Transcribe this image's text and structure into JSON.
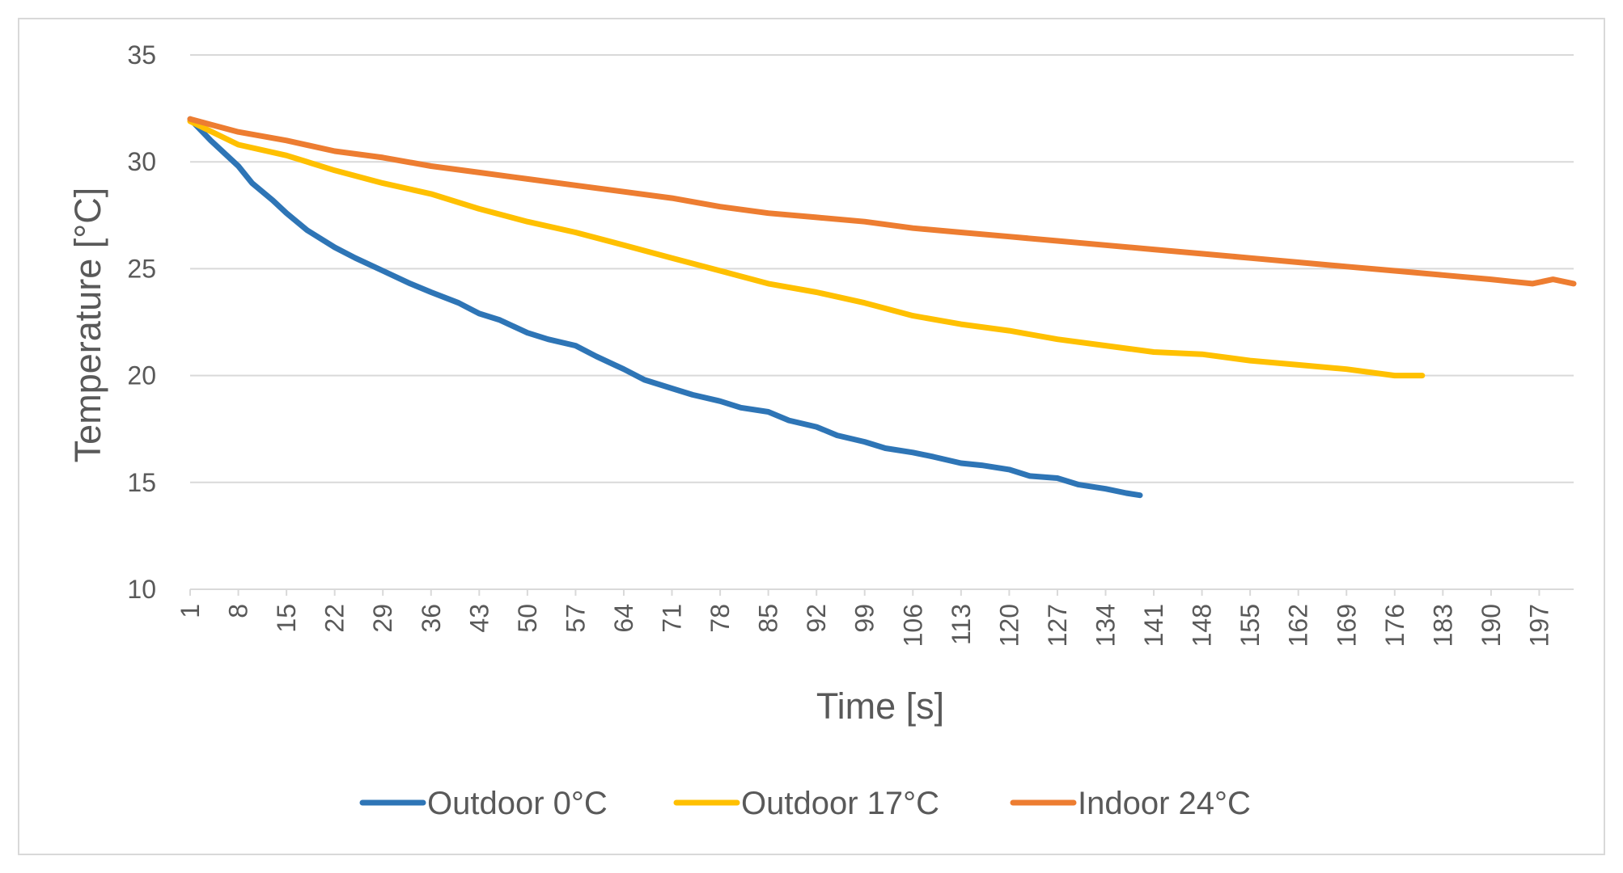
{
  "chart_data": {
    "type": "line",
    "title": "",
    "xlabel": "Time [s]",
    "ylabel": "Temperature [°C]",
    "ylim": [
      10,
      35
    ],
    "yticks": [
      "10",
      "15",
      "20",
      "25",
      "30",
      "35"
    ],
    "x_range": [
      1,
      202
    ],
    "x_tick_labels": [
      "1",
      "8",
      "15",
      "22",
      "29",
      "36",
      "43",
      "50",
      "57",
      "64",
      "71",
      "78",
      "85",
      "92",
      "99",
      "106",
      "113",
      "120",
      "127",
      "134",
      "141",
      "148",
      "155",
      "162",
      "169",
      "176",
      "183",
      "190",
      "197"
    ],
    "grid": true,
    "legend_position": "bottom",
    "series": [
      {
        "name": "Outdoor 0°C",
        "color": "#2e75b6",
        "x": [
          1,
          4,
          8,
          10,
          13,
          15,
          18,
          22,
          25,
          29,
          33,
          36,
          40,
          43,
          46,
          50,
          53,
          57,
          60,
          64,
          67,
          71,
          74,
          78,
          81,
          85,
          88,
          92,
          95,
          99,
          102,
          106,
          109,
          113,
          116,
          120,
          123,
          127,
          130,
          134,
          137,
          139
        ],
        "y": [
          32.0,
          31.0,
          29.8,
          29.0,
          28.2,
          27.6,
          26.8,
          26.0,
          25.5,
          24.9,
          24.3,
          23.9,
          23.4,
          22.9,
          22.6,
          22.0,
          21.7,
          21.4,
          20.9,
          20.3,
          19.8,
          19.4,
          19.1,
          18.8,
          18.5,
          18.3,
          17.9,
          17.6,
          17.2,
          16.9,
          16.6,
          16.4,
          16.2,
          15.9,
          15.8,
          15.6,
          15.3,
          15.2,
          14.9,
          14.7,
          14.5,
          14.4
        ]
      },
      {
        "name": "Outdoor 17°C",
        "color": "#ffc000",
        "x": [
          1,
          8,
          15,
          22,
          29,
          36,
          43,
          50,
          57,
          64,
          71,
          78,
          85,
          92,
          99,
          106,
          113,
          120,
          127,
          134,
          141,
          148,
          155,
          162,
          169,
          176,
          180
        ],
        "y": [
          31.9,
          30.8,
          30.3,
          29.6,
          29.0,
          28.5,
          27.8,
          27.2,
          26.7,
          26.1,
          25.5,
          24.9,
          24.3,
          23.9,
          23.4,
          22.8,
          22.4,
          22.1,
          21.7,
          21.4,
          21.1,
          21.0,
          20.7,
          20.5,
          20.3,
          20.0,
          20.0
        ]
      },
      {
        "name": "Indoor 24°C",
        "color": "#ed7d31",
        "x": [
          1,
          8,
          15,
          22,
          29,
          36,
          43,
          50,
          57,
          64,
          71,
          78,
          85,
          92,
          99,
          106,
          113,
          120,
          127,
          134,
          141,
          148,
          155,
          162,
          169,
          176,
          183,
          190,
          193,
          196,
          199,
          202
        ],
        "y": [
          32.0,
          31.4,
          31.0,
          30.5,
          30.2,
          29.8,
          29.5,
          29.2,
          28.9,
          28.6,
          28.3,
          27.9,
          27.6,
          27.4,
          27.2,
          26.9,
          26.7,
          26.5,
          26.3,
          26.1,
          25.9,
          25.7,
          25.5,
          25.3,
          25.1,
          24.9,
          24.7,
          24.5,
          24.4,
          24.3,
          24.5,
          24.3
        ]
      }
    ]
  }
}
